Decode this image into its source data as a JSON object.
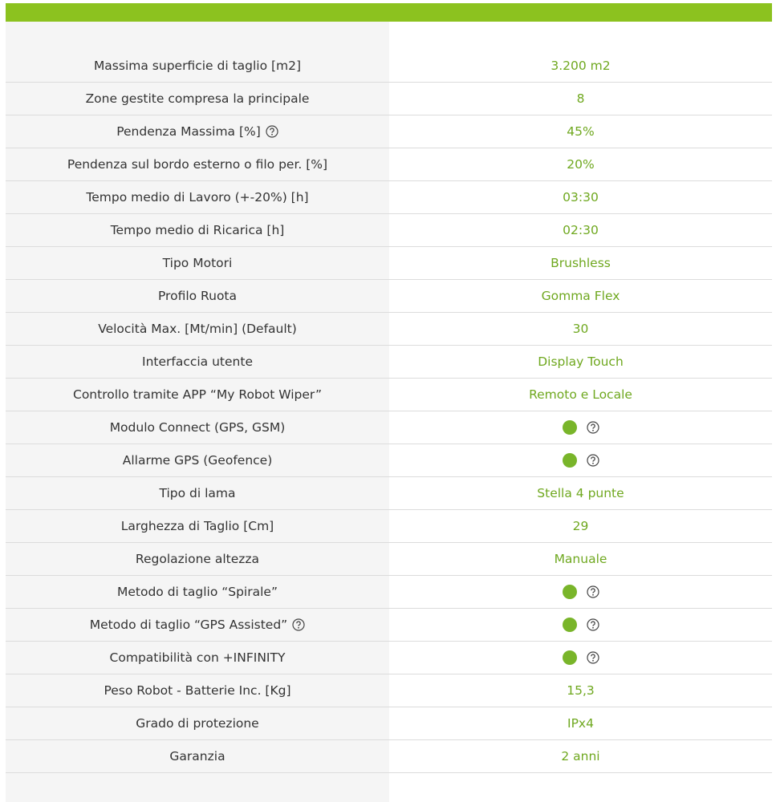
{
  "table": {
    "rows": [
      {
        "label": "Massima superficie di taglio [m2]",
        "value": "3.200 m2"
      },
      {
        "label": "Zone gestite compresa la principale",
        "value": "8"
      },
      {
        "label": "Pendenza Massima [%]",
        "value": "45%"
      },
      {
        "label": "Pendenza sul bordo esterno o filo per. [%]",
        "value": "20%"
      },
      {
        "label": "Tempo medio di Lavoro (+-20%) [h]",
        "value": "03:30"
      },
      {
        "label": "Tempo medio di Ricarica [h]",
        "value": "02:30"
      },
      {
        "label": "Tipo Motori",
        "value": "Brushless"
      },
      {
        "label": "Profilo Ruota",
        "value": "Gomma Flex"
      },
      {
        "label": "Velocità Max. [Mt/min] (Default)",
        "value": "30"
      },
      {
        "label": "Interfaccia utente",
        "value": "Display Touch"
      },
      {
        "label": "Controllo tramite APP “My Robot Wiper”",
        "value": "Remoto e Locale"
      },
      {
        "label": "Modulo Connect (GPS, GSM)"
      },
      {
        "label": "Allarme GPS (Geofence)"
      },
      {
        "label": "Tipo di lama",
        "value": "Stella 4 punte"
      },
      {
        "label": "Larghezza di Taglio [Cm]",
        "value": "29"
      },
      {
        "label": "Regolazione altezza",
        "value": "Manuale"
      },
      {
        "label": "Metodo di taglio “Spirale”"
      },
      {
        "label": "Metodo di taglio “GPS Assisted”"
      },
      {
        "label": "Compatibilità con +INFINITY"
      },
      {
        "label": "Peso Robot - Batterie Inc. [Kg]",
        "value": "15,3"
      },
      {
        "label": "Grado di protezione",
        "value": "IPx4"
      },
      {
        "label": "Garanzia",
        "value": "2 anni"
      }
    ]
  }
}
